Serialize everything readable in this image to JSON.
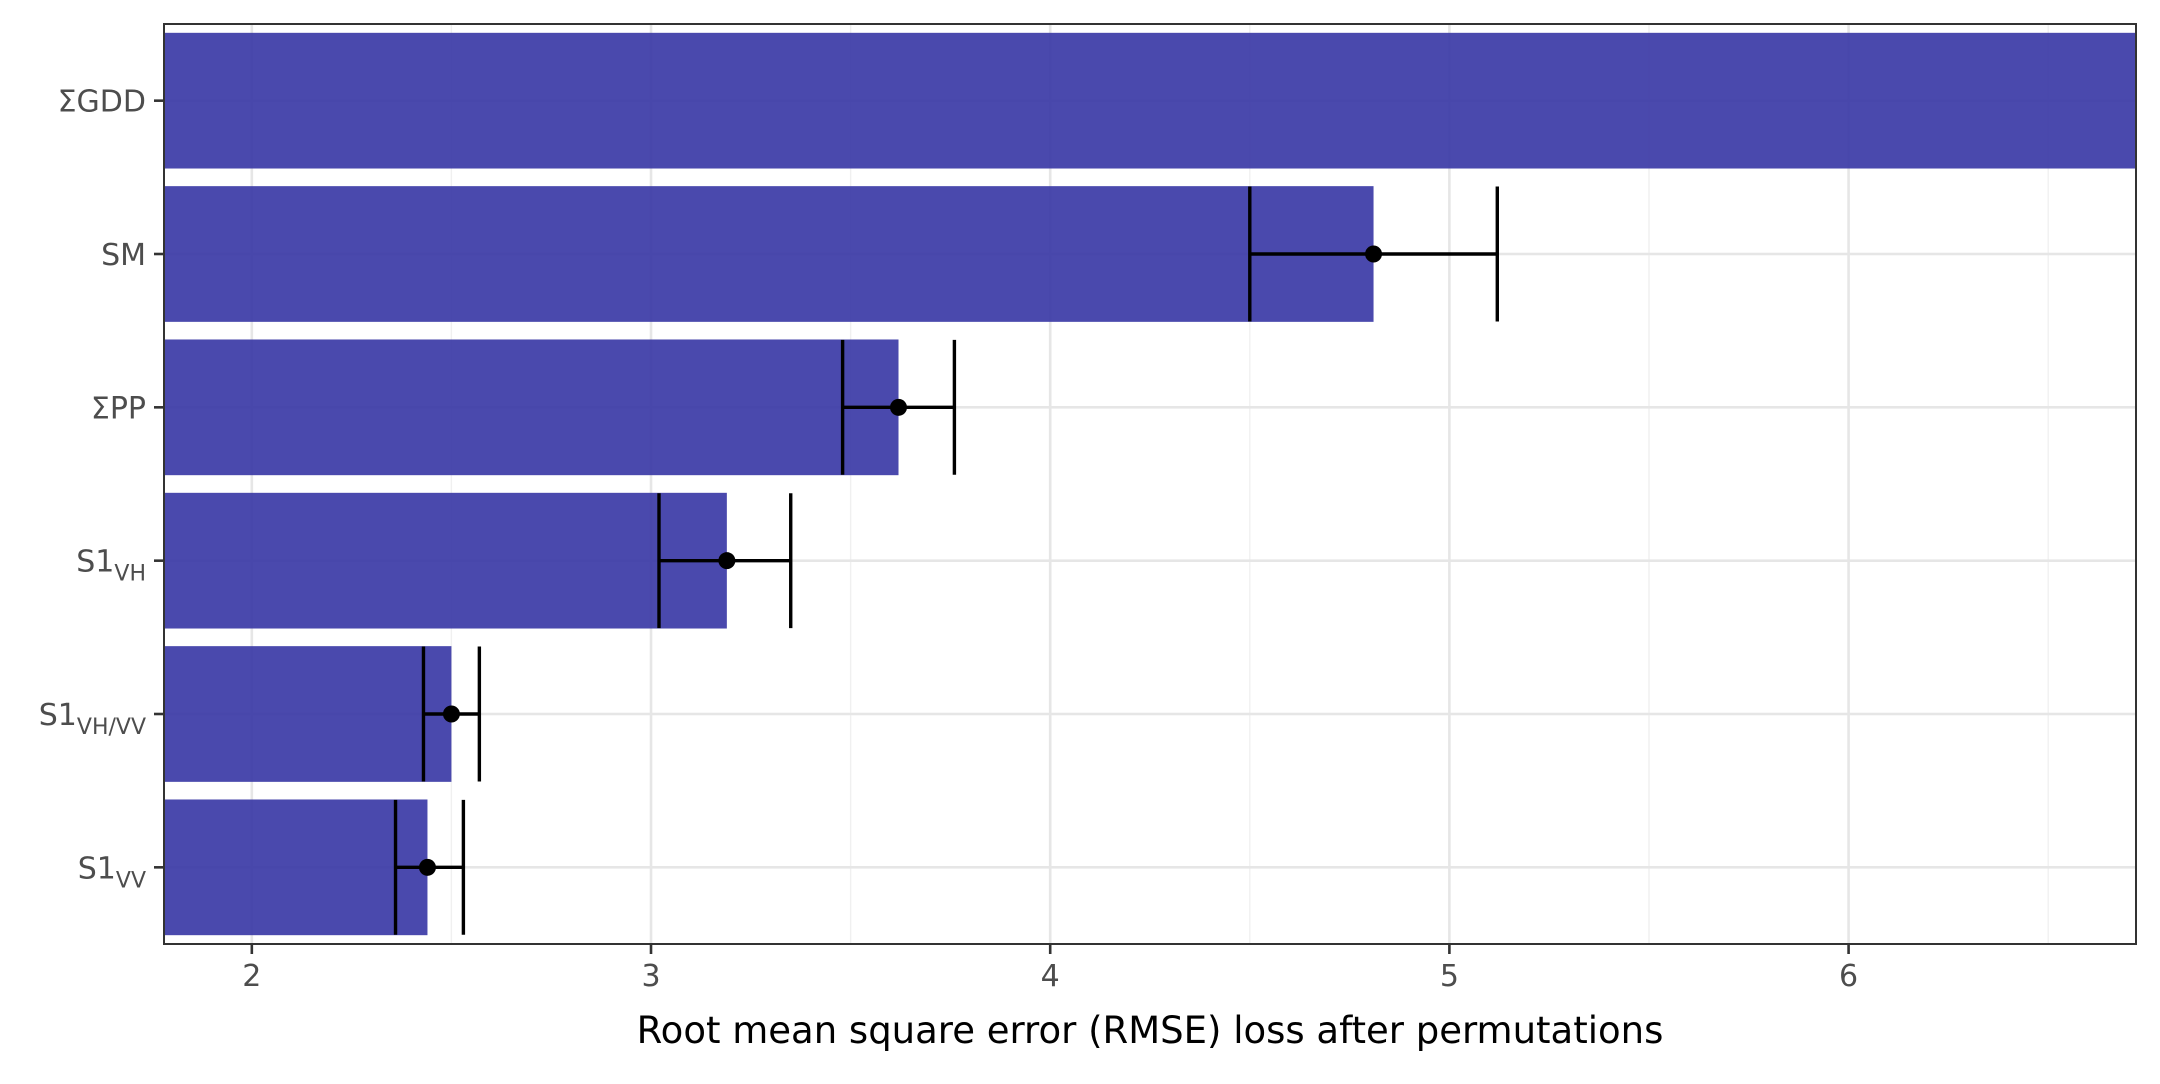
{
  "chart_data": {
    "type": "bar",
    "orientation": "horizontal",
    "title": "",
    "xlabel": "Root mean square error (RMSE) loss after permutations",
    "ylabel": "",
    "xlim": [
      1.78,
      6.72
    ],
    "x_ticks": [
      2,
      3,
      4,
      5,
      6
    ],
    "grid": true,
    "legend": "none",
    "categories": [
      {
        "base": "ΣGDD",
        "sub": ""
      },
      {
        "base": "SM",
        "sub": ""
      },
      {
        "base": "ΣPP",
        "sub": ""
      },
      {
        "base": "S1",
        "sub": "VH"
      },
      {
        "base": "S1",
        "sub": "VH/VV"
      },
      {
        "base": "S1",
        "sub": "VV"
      }
    ],
    "values": [
      6.72,
      4.81,
      3.62,
      3.19,
      2.5,
      2.44
    ],
    "error_low": [
      null,
      4.5,
      3.48,
      3.02,
      2.43,
      2.36
    ],
    "error_high": [
      null,
      5.12,
      3.76,
      3.35,
      2.57,
      2.53
    ],
    "bar_color": "#3b3aa6",
    "error_color": "#000000"
  }
}
